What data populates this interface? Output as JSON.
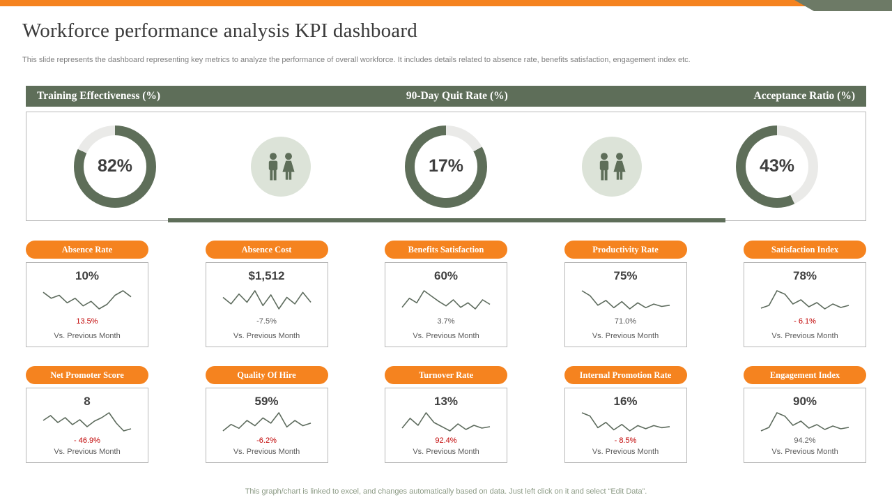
{
  "page": {
    "title": "Workforce performance analysis KPI dashboard",
    "subtitle": "This slide represents the dashboard representing key metrics to analyze  the performance of overall workforce. It includes details related to absence rate, benefits satisfaction, engagement index etc.",
    "footer_note": "This graph/chart is linked to excel,  and changes automatically based on data. Just left click on it and select “Edit Data”."
  },
  "colors": {
    "accent_orange": "#F5831F",
    "sage_green": "#5E6E59",
    "light_sage": "#DCE3D8",
    "donut_track": "#EAEAE8",
    "negative_red": "#C00000",
    "spark_line": "#5D6B5D"
  },
  "section_headers": [
    {
      "label": "Training Effectiveness (%)"
    },
    {
      "label": "90-Day Quit Rate (%)"
    },
    {
      "label": "Acceptance Ratio (%)"
    }
  ],
  "labels": {
    "vs_previous": "Vs. Previous Month"
  },
  "chart_data": {
    "donuts": [
      {
        "type": "donut",
        "metric": "Training Effectiveness (%)",
        "value_pct": 82,
        "label": "82%",
        "green_sweep_pct": 82,
        "gray_first": false
      },
      {
        "type": "donut",
        "metric": "90-Day Quit Rate (%)",
        "value_pct": 17,
        "label": "17%",
        "green_sweep_pct": 83,
        "gray_first": true
      },
      {
        "type": "donut",
        "metric": "Acceptance Ratio (%)",
        "value_pct": 43,
        "label": "43%",
        "green_sweep_pct": 57,
        "gray_first": true
      }
    ],
    "cards": [
      {
        "type": "line",
        "label": "Absence Rate",
        "value": "10%",
        "change": "13.5%",
        "change_color": "red",
        "spark": [
          56,
          52,
          54,
          49,
          52,
          47,
          50,
          45,
          48,
          54,
          57,
          53
        ]
      },
      {
        "type": "line",
        "label": "Absence Cost",
        "value": "$1,512",
        "change": "-7.5%",
        "change_color": "gray",
        "spark": [
          52,
          44,
          56,
          46,
          60,
          42,
          55,
          38,
          52,
          44,
          58,
          46
        ]
      },
      {
        "type": "line",
        "label": "Benefits Satisfaction",
        "value": "60%",
        "change": "3.7%",
        "change_color": "gray",
        "spark": [
          40,
          52,
          46,
          62,
          55,
          48,
          42,
          50,
          40,
          46,
          38,
          50,
          44
        ]
      },
      {
        "type": "line",
        "label": "Productivity Rate",
        "value": "75%",
        "change": "71.0%",
        "change_color": "gray",
        "spark": [
          66,
          58,
          42,
          50,
          38,
          48,
          36,
          46,
          38,
          44,
          40,
          42
        ]
      },
      {
        "type": "line",
        "label": "Satisfaction Index",
        "value": "78%",
        "change": "- 6.1%",
        "change_color": "red",
        "spark": [
          28,
          36,
          78,
          68,
          40,
          52,
          32,
          44,
          26,
          40,
          30,
          36
        ]
      },
      {
        "type": "line",
        "label": "Net Promoter Score",
        "value": "8",
        "change": "- 46.9%",
        "change_color": "red",
        "spark": [
          48,
          62,
          42,
          56,
          36,
          50,
          30,
          46,
          56,
          70,
          40,
          18,
          24
        ]
      },
      {
        "type": "line",
        "label": "Quality Of Hire",
        "value": "59%",
        "change": "-6.2%",
        "change_color": "red",
        "spark": [
          38,
          48,
          42,
          54,
          46,
          58,
          50,
          66,
          44,
          54,
          46,
          50
        ]
      },
      {
        "type": "line",
        "label": "Turnover Rate",
        "value": "13%",
        "change": "92.4%",
        "change_color": "red",
        "spark": [
          42,
          56,
          46,
          64,
          50,
          44,
          38,
          48,
          40,
          46,
          42,
          44
        ]
      },
      {
        "type": "line",
        "label": "Internal Promotion Rate",
        "value": "16%",
        "change": "- 8.5%",
        "change_color": "red",
        "spark": [
          68,
          62,
          40,
          50,
          36,
          46,
          34,
          44,
          38,
          44,
          40,
          42
        ]
      },
      {
        "type": "line",
        "label": "Engagement Index",
        "value": "90%",
        "change": "94.2%",
        "change_color": "gray",
        "spark": [
          30,
          40,
          82,
          72,
          46,
          58,
          38,
          48,
          34,
          44,
          36,
          40
        ]
      }
    ]
  }
}
